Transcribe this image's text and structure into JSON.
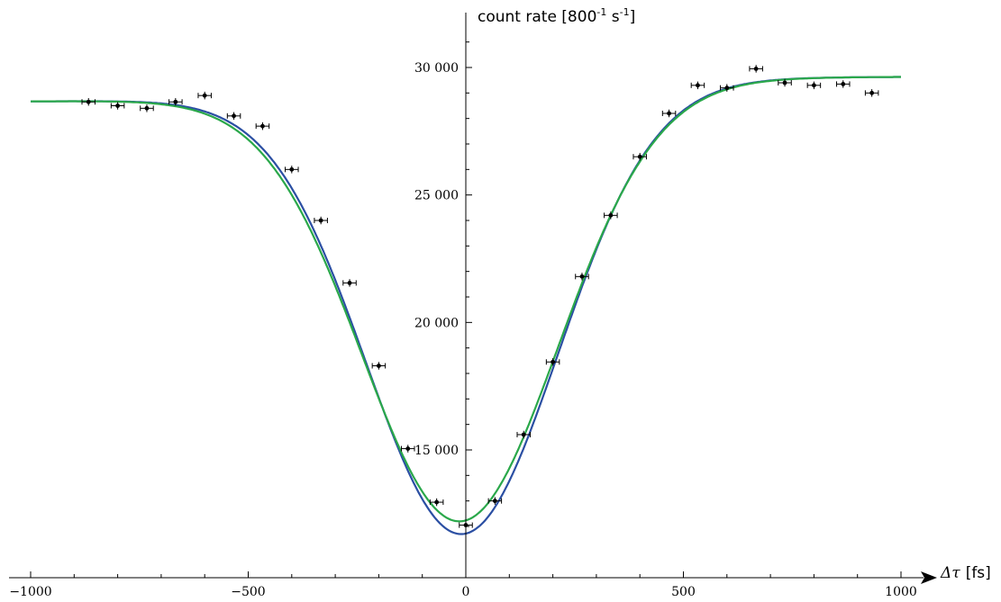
{
  "chart_data": {
    "type": "scatter",
    "ylabel": "count rate [800",
    "ylabel_sup1": "-1",
    "ylabel_mid": " s",
    "ylabel_sup2": "-1",
    "ylabel_end": "]",
    "xlabel": "Δτ",
    "xlabel_unit": "[fs]",
    "xlim": [
      -1000,
      1000
    ],
    "ylim": [
      11000,
      32000
    ],
    "x_axis_crosses_y_at": 11000,
    "grid": false,
    "xticks": [
      -1000,
      -500,
      0,
      500,
      1000
    ],
    "xtick_labels": [
      "−1000",
      "−500",
      "0",
      "500",
      "1000"
    ],
    "yticks": [
      15000,
      20000,
      25000,
      30000
    ],
    "ytick_labels": [
      "15 000",
      "20 000",
      "25 000",
      "30 000"
    ],
    "x_error": 15,
    "y_error": 150,
    "points": [
      {
        "x": -867,
        "y": 28650
      },
      {
        "x": -800,
        "y": 28500
      },
      {
        "x": -733,
        "y": 28400
      },
      {
        "x": -667,
        "y": 28650
      },
      {
        "x": -600,
        "y": 28900
      },
      {
        "x": -533,
        "y": 28100
      },
      {
        "x": -467,
        "y": 27700
      },
      {
        "x": -400,
        "y": 26000
      },
      {
        "x": -333,
        "y": 24000
      },
      {
        "x": -267,
        "y": 21550
      },
      {
        "x": -200,
        "y": 18300
      },
      {
        "x": -133,
        "y": 15050
      },
      {
        "x": -67,
        "y": 12950
      },
      {
        "x": 0,
        "y": 12050
      },
      {
        "x": 67,
        "y": 13000
      },
      {
        "x": 133,
        "y": 15600
      },
      {
        "x": 200,
        "y": 18450
      },
      {
        "x": 267,
        "y": 21800
      },
      {
        "x": 333,
        "y": 24200
      },
      {
        "x": 400,
        "y": 26500
      },
      {
        "x": 467,
        "y": 28200
      },
      {
        "x": 533,
        "y": 29300
      },
      {
        "x": 600,
        "y": 29200
      },
      {
        "x": 667,
        "y": 29950
      },
      {
        "x": 733,
        "y": 29400
      },
      {
        "x": 800,
        "y": 29300
      },
      {
        "x": 867,
        "y": 29350
      },
      {
        "x": 933,
        "y": 29000
      }
    ],
    "fits": [
      {
        "color": "#2b4fa3",
        "model": {
          "center": -8,
          "sigma": 220,
          "depth": 17450,
          "base_left": 28650,
          "base_right": 29650,
          "slope_mid": 0
        }
      },
      {
        "color": "#2aa84a",
        "model": {
          "center": -12,
          "sigma": 225,
          "depth": 16950,
          "base_left": 28650,
          "base_right": 29650,
          "slope_mid": 0
        }
      }
    ],
    "colors": {
      "points": "#000000",
      "axis": "#000000"
    }
  }
}
